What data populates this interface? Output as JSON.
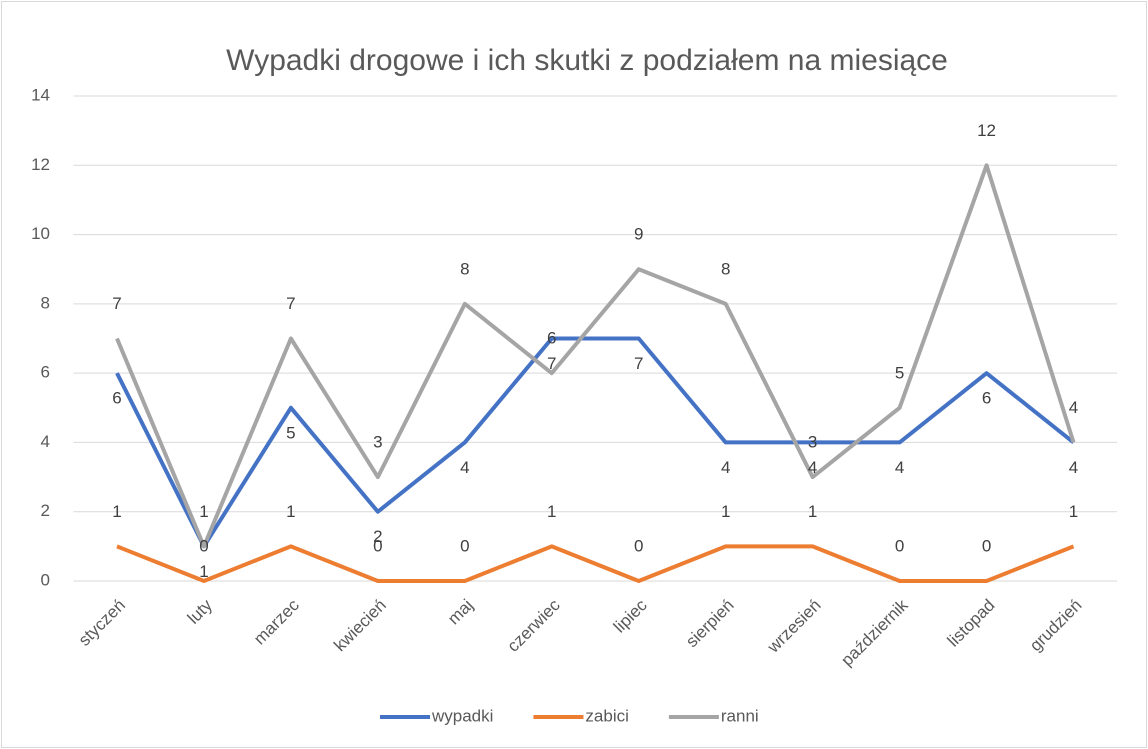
{
  "chart_data": {
    "type": "line",
    "title": "Wypadki drogowe i ich skutki z podziałem na miesiące",
    "categories": [
      "styczeń",
      "luty",
      "marzec",
      "kwiecień",
      "maj",
      "czerwiec",
      "lipiec",
      "sierpień",
      "wrzesień",
      "październik",
      "listopad",
      "grudzień"
    ],
    "series": [
      {
        "name": "wypadki",
        "color": "#4472c4",
        "values": [
          6,
          1,
          5,
          2,
          4,
          7,
          7,
          4,
          4,
          4,
          6,
          4
        ]
      },
      {
        "name": "zabici",
        "color": "#ed7d31",
        "values": [
          1,
          0,
          1,
          0,
          0,
          1,
          0,
          1,
          1,
          0,
          0,
          1
        ]
      },
      {
        "name": "ranni",
        "color": "#a5a5a5",
        "values": [
          7,
          1,
          7,
          3,
          8,
          6,
          9,
          8,
          3,
          5,
          12,
          4
        ]
      }
    ],
    "ylim": [
      0,
      14
    ],
    "yticks": [
      0,
      2,
      4,
      6,
      8,
      10,
      12,
      14
    ],
    "grid": true,
    "legend": "bottom"
  }
}
